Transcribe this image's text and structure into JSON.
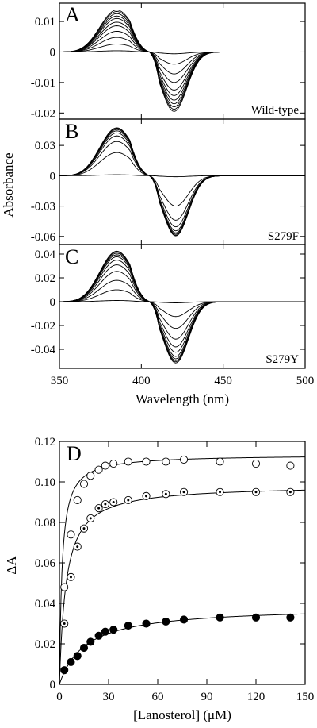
{
  "chart_data": [
    {
      "type": "line",
      "panel_label": "A",
      "variant_label": "Wild-type",
      "ylabel": "",
      "xlabel": "",
      "xlim": [
        350,
        500
      ],
      "ylim": [
        -0.022,
        0.016
      ],
      "yticks": [
        0.01,
        0,
        -0.01,
        -0.02
      ],
      "ytick_labels": [
        "0.01",
        "0",
        "-0.01",
        "-0.02"
      ],
      "grid": false,
      "curve_model": {
        "peak_nm": 385,
        "trough_nm": 420,
        "isosbestic_nm": 405
      },
      "series": [
        {
          "peak": 0.0138,
          "trough": -0.0195
        },
        {
          "peak": 0.0133,
          "trough": -0.0188
        },
        {
          "peak": 0.0126,
          "trough": -0.018
        },
        {
          "peak": 0.0118,
          "trough": -0.017
        },
        {
          "peak": 0.011,
          "trough": -0.0158
        },
        {
          "peak": 0.0098,
          "trough": -0.0143
        },
        {
          "peak": 0.0086,
          "trough": -0.0125
        },
        {
          "peak": 0.0068,
          "trough": -0.01
        },
        {
          "peak": 0.0048,
          "trough": -0.0072
        },
        {
          "peak": 0.0026,
          "trough": -0.004
        },
        {
          "peak": 0.0004,
          "trough": -0.0006
        }
      ]
    },
    {
      "type": "line",
      "panel_label": "B",
      "variant_label": "S279F",
      "ylabel": "Absorbance",
      "xlabel": "",
      "xlim": [
        350,
        500
      ],
      "ylim": [
        -0.068,
        0.056
      ],
      "yticks": [
        0.03,
        0,
        -0.03,
        -0.06
      ],
      "ytick_labels": [
        "0.03",
        "0",
        "-0.03",
        "-0.06"
      ],
      "grid": false,
      "curve_model": {
        "peak_nm": 385,
        "trough_nm": 421,
        "isosbestic_nm": 405
      },
      "series": [
        {
          "peak": 0.0475,
          "trough": -0.0595
        },
        {
          "peak": 0.0468,
          "trough": -0.0588
        },
        {
          "peak": 0.0458,
          "trough": -0.0578
        },
        {
          "peak": 0.0445,
          "trough": -0.0565
        },
        {
          "peak": 0.0425,
          "trough": -0.0545
        },
        {
          "peak": 0.0395,
          "trough": -0.0505
        },
        {
          "peak": 0.034,
          "trough": -0.044
        },
        {
          "peak": 0.023,
          "trough": -0.03
        },
        {
          "peak": 0.001,
          "trough": -0.001
        }
      ]
    },
    {
      "type": "line",
      "panel_label": "C",
      "variant_label": "S279Y",
      "ylabel": "",
      "xlabel": "Wavelength (nm)",
      "xlim": [
        350,
        500
      ],
      "xticks": [
        350,
        400,
        450,
        500
      ],
      "xtick_labels": [
        "350",
        "400",
        "450",
        "500"
      ],
      "ylim": [
        -0.056,
        0.048
      ],
      "yticks": [
        0.04,
        0.02,
        0,
        -0.02,
        -0.04
      ],
      "ytick_labels": [
        "0.04",
        "0.02",
        "0",
        "-0.02",
        "-0.04"
      ],
      "grid": false,
      "curve_model": {
        "peak_nm": 385,
        "trough_nm": 421,
        "isosbestic_nm": 405
      },
      "series": [
        {
          "peak": 0.0425,
          "trough": -0.0515
        },
        {
          "peak": 0.0418,
          "trough": -0.0505
        },
        {
          "peak": 0.0408,
          "trough": -0.0495
        },
        {
          "peak": 0.0395,
          "trough": -0.048
        },
        {
          "peak": 0.0378,
          "trough": -0.046
        },
        {
          "peak": 0.035,
          "trough": -0.0425
        },
        {
          "peak": 0.031,
          "trough": -0.038
        },
        {
          "peak": 0.0255,
          "trough": -0.0315
        },
        {
          "peak": 0.018,
          "trough": -0.0225
        },
        {
          "peak": 0.01,
          "trough": -0.0125
        },
        {
          "peak": 0.001,
          "trough": -0.001
        }
      ]
    },
    {
      "type": "scatter",
      "panel_label": "D",
      "xlabel": "[Lanosterol] (μM)",
      "ylabel": "ΔA",
      "xlim": [
        0,
        150
      ],
      "ylim": [
        0,
        0.12
      ],
      "xticks": [
        0,
        30,
        60,
        90,
        120,
        150
      ],
      "xtick_labels": [
        "0",
        "30",
        "60",
        "90",
        "120",
        "150"
      ],
      "yticks": [
        0,
        0.02,
        0.04,
        0.06,
        0.08,
        0.1,
        0.12
      ],
      "ytick_labels": [
        "0",
        "0.02",
        "0.04",
        "0.06",
        "0.08",
        "0.10",
        "0.12"
      ],
      "grid": false,
      "series": [
        {
          "marker": "open-circle",
          "fit": {
            "vmax": 0.1135,
            "kd": 1.6
          },
          "x": [
            3,
            7,
            11,
            15,
            19,
            24,
            28,
            33,
            42,
            53,
            65,
            76,
            98,
            120,
            141
          ],
          "y": [
            0.048,
            0.074,
            0.091,
            0.099,
            0.103,
            0.106,
            0.108,
            0.109,
            0.11,
            0.11,
            0.11,
            0.111,
            0.11,
            0.109,
            0.108
          ]
        },
        {
          "marker": "dotted-circle",
          "fit": {
            "vmax": 0.0985,
            "kd": 4.0
          },
          "x": [
            3,
            7,
            11,
            15,
            19,
            24,
            28,
            33,
            42,
            53,
            65,
            76,
            98,
            120,
            141
          ],
          "y": [
            0.03,
            0.053,
            0.068,
            0.077,
            0.082,
            0.087,
            0.089,
            0.09,
            0.091,
            0.093,
            0.094,
            0.095,
            0.095,
            0.095,
            0.095
          ]
        },
        {
          "marker": "filled-circle",
          "fit": {
            "vmax": 0.0385,
            "kd": 16.0
          },
          "x": [
            3,
            7,
            11,
            15,
            19,
            24,
            28,
            33,
            42,
            53,
            65,
            76,
            98,
            120,
            141
          ],
          "y": [
            0.007,
            0.011,
            0.014,
            0.018,
            0.021,
            0.024,
            0.026,
            0.027,
            0.029,
            0.03,
            0.031,
            0.032,
            0.033,
            0.033,
            0.033
          ]
        }
      ]
    }
  ]
}
